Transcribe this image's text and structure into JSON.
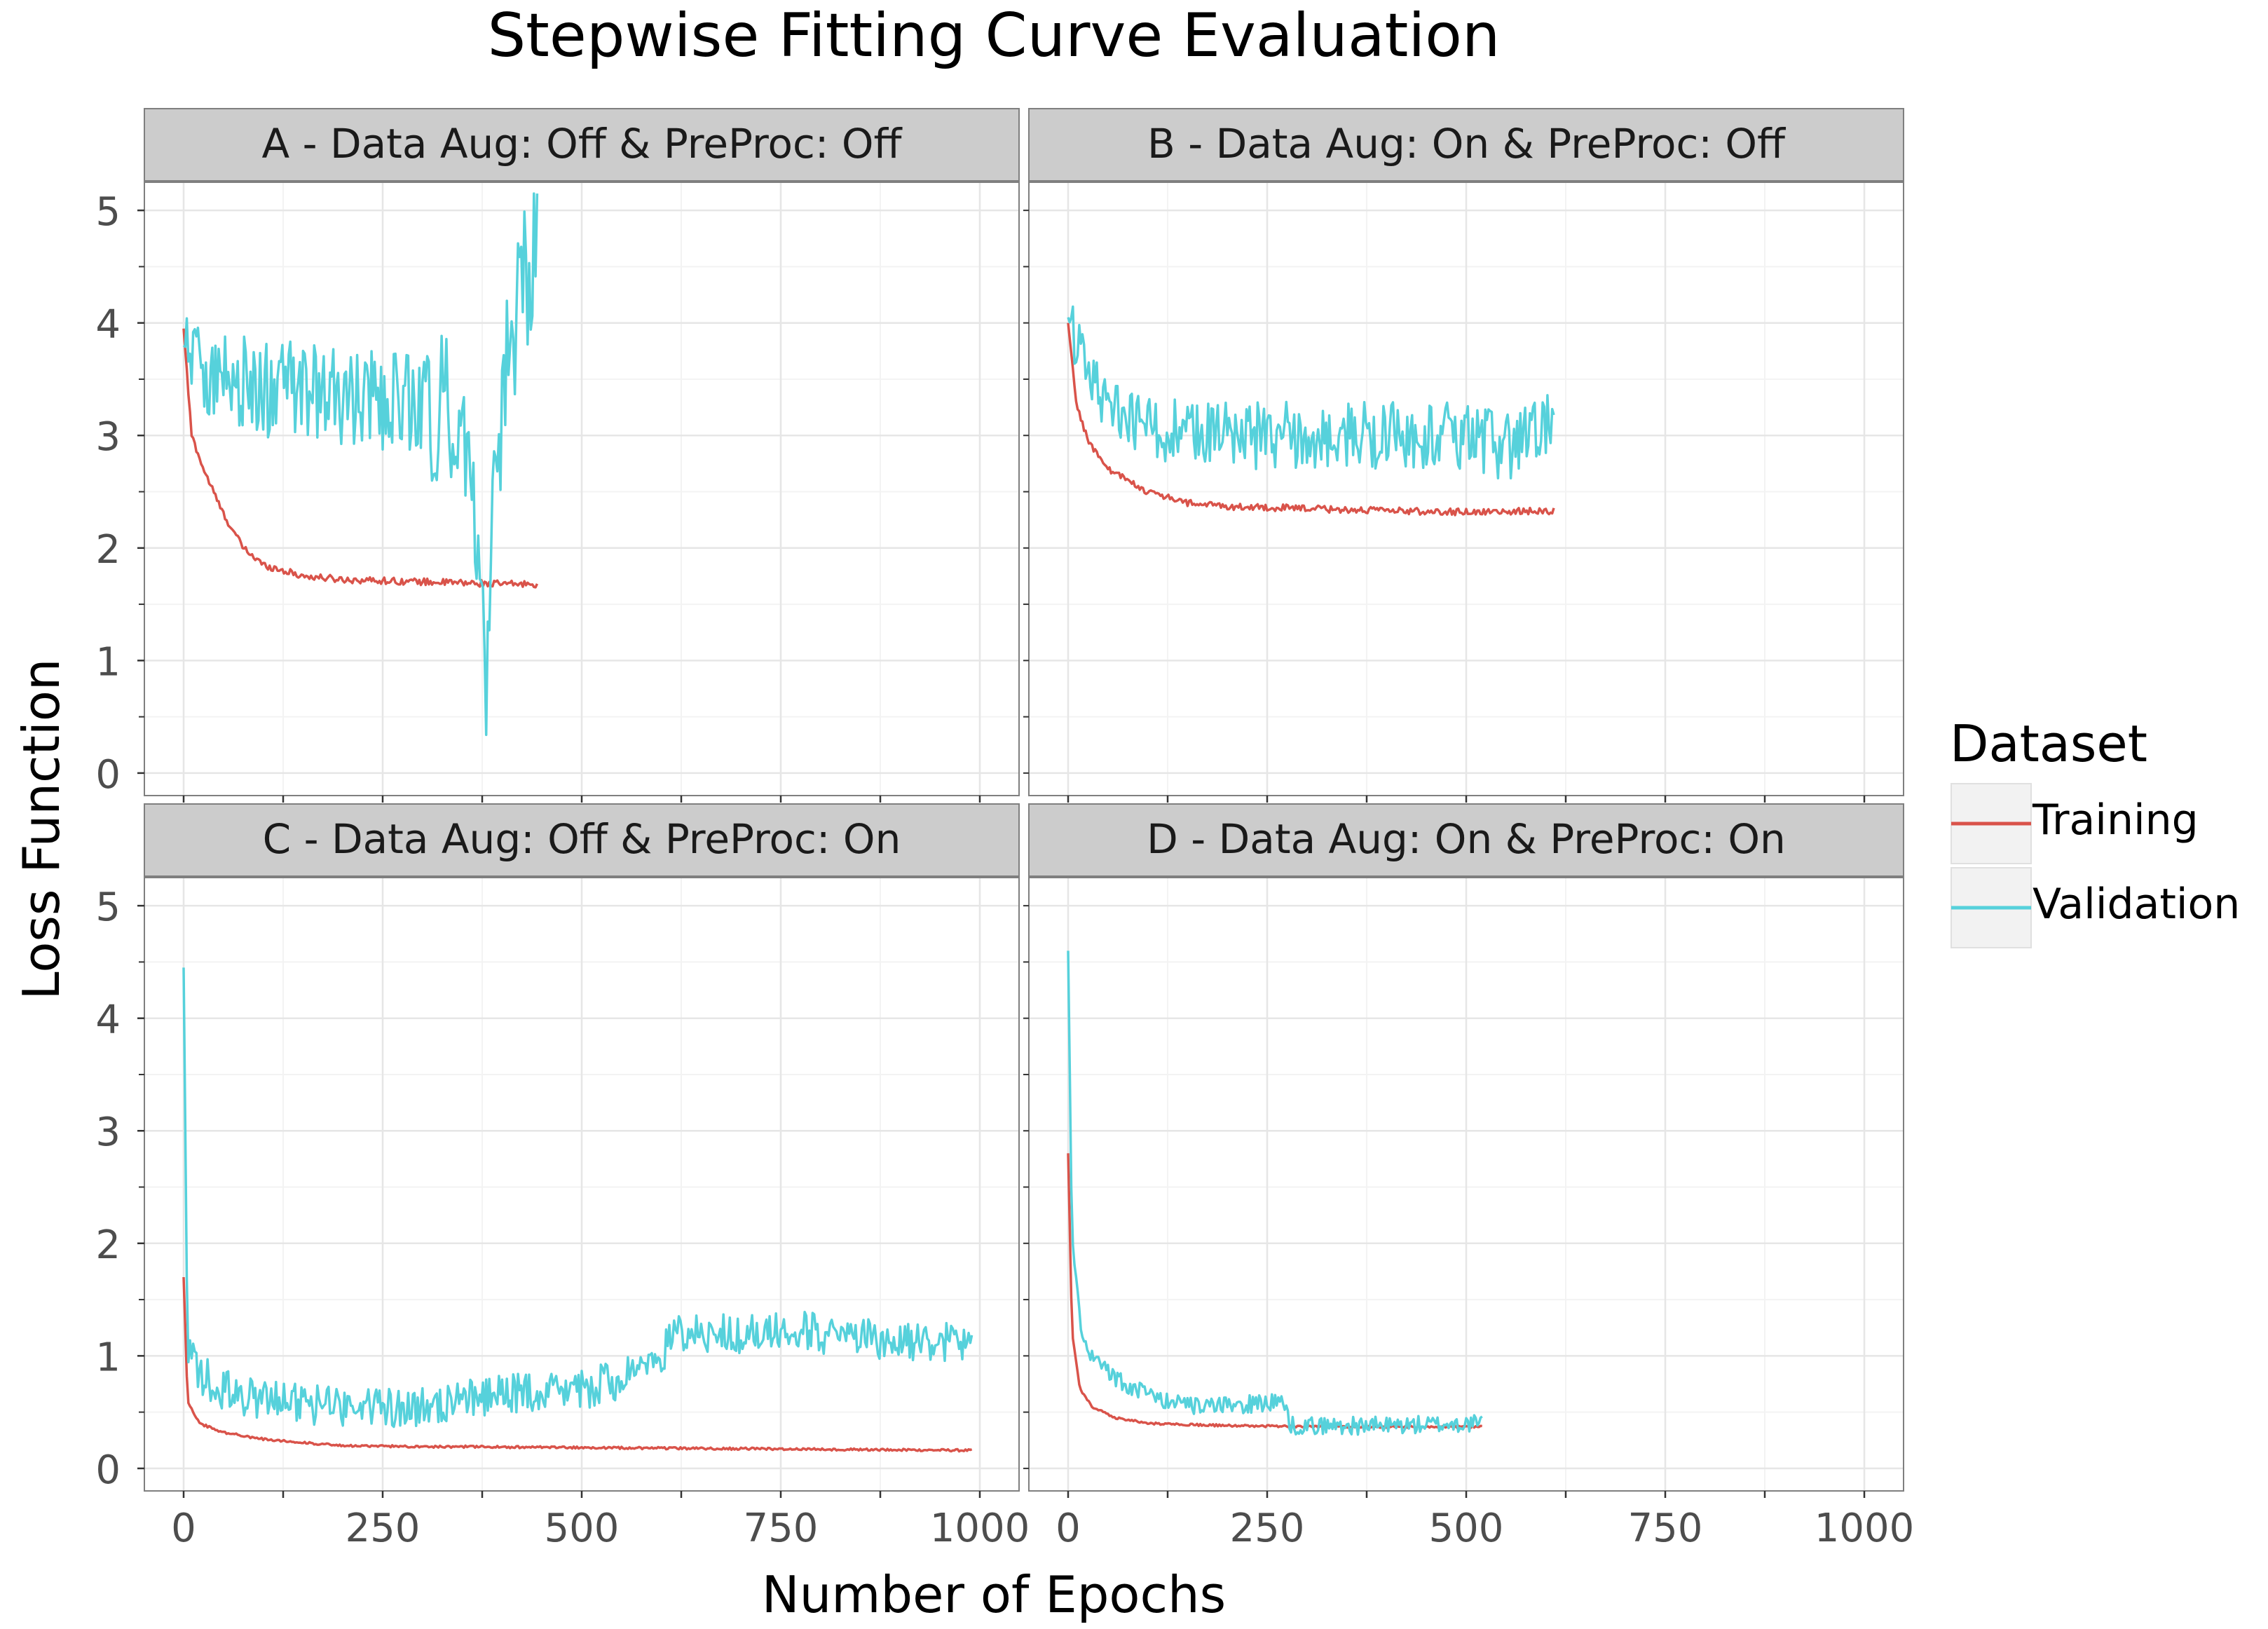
{
  "chart_data": {
    "type": "line",
    "title": "Stepwise Fitting Curve Evaluation",
    "xlabel": "Number of Epochs",
    "ylabel": "Loss Function",
    "xlim": [
      0,
      1000
    ],
    "ylim": [
      0,
      5
    ],
    "x_ticks": [
      0,
      250,
      500,
      750,
      1000
    ],
    "y_ticks": [
      0,
      1,
      2,
      3,
      4,
      5
    ],
    "grid": true,
    "legend": {
      "title": "Dataset",
      "position": "right",
      "entries": [
        {
          "name": "Training",
          "color": "#d9534a"
        },
        {
          "name": "Validation",
          "color": "#56d1db"
        }
      ]
    },
    "facets": [
      {
        "label": "A - Data Aug: Off & PreProc: Off",
        "epochs": 445,
        "series": [
          {
            "name": "Training",
            "points": [
              [
                0,
                3.95
              ],
              [
                10,
                3.0
              ],
              [
                25,
                2.7
              ],
              [
                50,
                2.3
              ],
              [
                75,
                2.0
              ],
              [
                100,
                1.85
              ],
              [
                150,
                1.75
              ],
              [
                200,
                1.72
              ],
              [
                300,
                1.7
              ],
              [
                400,
                1.68
              ],
              [
                445,
                1.68
              ]
            ]
          },
          {
            "name": "Validation",
            "points": [
              [
                0,
                3.8
              ],
              [
                50,
                3.5
              ],
              [
                100,
                3.4
              ],
              [
                150,
                3.4
              ],
              [
                200,
                3.3
              ],
              [
                250,
                3.3
              ],
              [
                300,
                3.3
              ],
              [
                350,
                3.2
              ],
              [
                380,
                1.0
              ],
              [
                400,
                3.3
              ],
              [
                445,
                4.9
              ]
            ]
          }
        ]
      },
      {
        "label": "B - Data Aug: On & PreProc: Off",
        "epochs": 610,
        "series": [
          {
            "name": "Training",
            "points": [
              [
                0,
                4.0
              ],
              [
                10,
                3.3
              ],
              [
                25,
                2.95
              ],
              [
                50,
                2.7
              ],
              [
                100,
                2.5
              ],
              [
                150,
                2.4
              ],
              [
                200,
                2.37
              ],
              [
                300,
                2.35
              ],
              [
                400,
                2.33
              ],
              [
                500,
                2.32
              ],
              [
                610,
                2.33
              ]
            ]
          },
          {
            "name": "Validation",
            "points": [
              [
                0,
                4.05
              ],
              [
                25,
                3.5
              ],
              [
                50,
                3.3
              ],
              [
                100,
                3.1
              ],
              [
                150,
                3.0
              ],
              [
                200,
                3.0
              ],
              [
                300,
                3.0
              ],
              [
                400,
                3.0
              ],
              [
                500,
                3.0
              ],
              [
                550,
                2.9
              ],
              [
                610,
                3.1
              ]
            ]
          }
        ]
      },
      {
        "label": "C - Data Aug: Off & PreProc: On",
        "epochs": 990,
        "series": [
          {
            "name": "Training",
            "points": [
              [
                0,
                1.7
              ],
              [
                5,
                0.6
              ],
              [
                20,
                0.4
              ],
              [
                50,
                0.32
              ],
              [
                100,
                0.26
              ],
              [
                200,
                0.2
              ],
              [
                400,
                0.19
              ],
              [
                600,
                0.18
              ],
              [
                800,
                0.17
              ],
              [
                990,
                0.16
              ]
            ]
          },
          {
            "name": "Validation",
            "points": [
              [
                0,
                4.45
              ],
              [
                5,
                1.0
              ],
              [
                20,
                0.85
              ],
              [
                50,
                0.7
              ],
              [
                100,
                0.6
              ],
              [
                200,
                0.55
              ],
              [
                300,
                0.55
              ],
              [
                400,
                0.65
              ],
              [
                500,
                0.7
              ],
              [
                580,
                0.85
              ],
              [
                620,
                1.2
              ],
              [
                700,
                1.2
              ],
              [
                750,
                1.25
              ],
              [
                850,
                1.15
              ],
              [
                990,
                1.1
              ]
            ]
          }
        ]
      },
      {
        "label": "D - Data Aug: On & PreProc: On",
        "epochs": 520,
        "series": [
          {
            "name": "Training",
            "points": [
              [
                0,
                2.8
              ],
              [
                5,
                1.2
              ],
              [
                15,
                0.7
              ],
              [
                30,
                0.55
              ],
              [
                60,
                0.45
              ],
              [
                100,
                0.4
              ],
              [
                200,
                0.38
              ],
              [
                300,
                0.37
              ],
              [
                400,
                0.37
              ],
              [
                520,
                0.37
              ]
            ]
          },
          {
            "name": "Validation",
            "points": [
              [
                0,
                4.6
              ],
              [
                5,
                2.0
              ],
              [
                15,
                1.3
              ],
              [
                30,
                1.0
              ],
              [
                60,
                0.8
              ],
              [
                100,
                0.65
              ],
              [
                150,
                0.55
              ],
              [
                200,
                0.55
              ],
              [
                270,
                0.6
              ],
              [
                280,
                0.38
              ],
              [
                400,
                0.38
              ],
              [
                520,
                0.4
              ]
            ]
          }
        ]
      }
    ]
  }
}
